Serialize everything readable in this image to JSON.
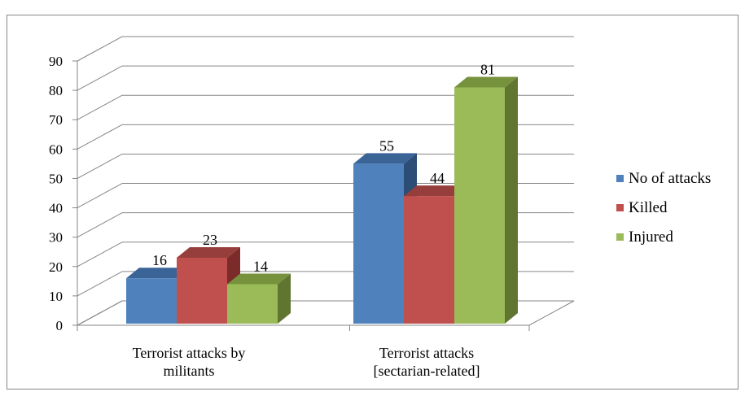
{
  "chart_data": {
    "type": "bar",
    "style": "3d-clustered-column",
    "categories": [
      [
        "Terrorist attacks by",
        "militants"
      ],
      [
        "Terrorist attacks",
        "[sectarian-related]"
      ]
    ],
    "series": [
      {
        "name": "No of attacks",
        "values": [
          16,
          55
        ],
        "color": "#4F81BD",
        "side": "#2C4D75",
        "top": "#3A6396"
      },
      {
        "name": "Killed",
        "values": [
          23,
          44
        ],
        "color": "#C0504D",
        "side": "#7B2C2A",
        "top": "#963E3B"
      },
      {
        "name": "Injured",
        "values": [
          14,
          81
        ],
        "color": "#9BBB59",
        "side": "#5F7530",
        "top": "#76923C"
      }
    ],
    "yticks": [
      "0",
      "10",
      "20",
      "30",
      "40",
      "50",
      "60",
      "70",
      "80",
      "90"
    ],
    "ylim": [
      0,
      90
    ],
    "grid": true,
    "legend": "right",
    "title": "",
    "xlabel": "",
    "ylabel": ""
  }
}
